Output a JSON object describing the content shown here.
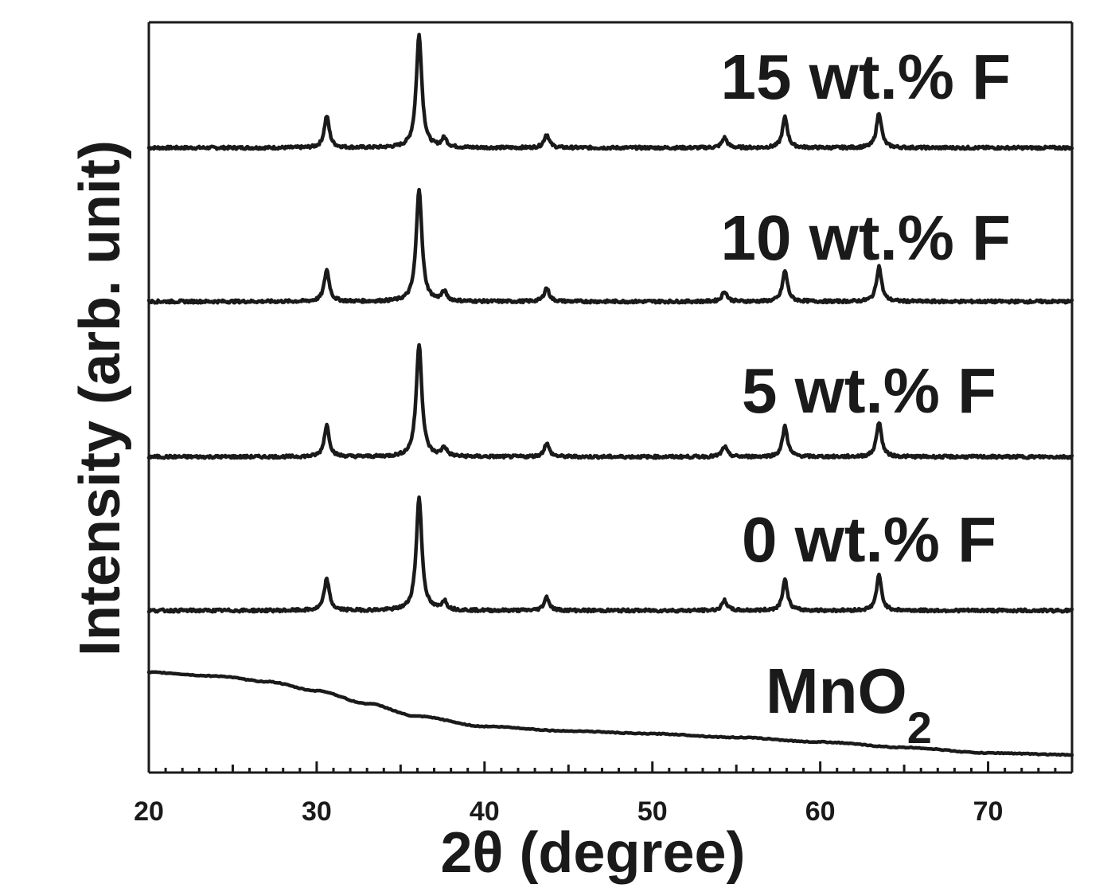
{
  "chart_data": {
    "type": "line",
    "title": "",
    "xlabel": "2θ (degree)",
    "ylabel": "Intensity (arb. unit)",
    "xlim": [
      20,
      75
    ],
    "xticks": [
      20,
      30,
      40,
      50,
      60,
      70
    ],
    "yticks_shown": false,
    "grid": false,
    "peaks": [
      {
        "x": 30.6,
        "height": 0.28
      },
      {
        "x": 36.1,
        "height": 1.0
      },
      {
        "x": 37.6,
        "height": 0.08
      },
      {
        "x": 43.7,
        "height": 0.12
      },
      {
        "x": 54.3,
        "height": 0.09
      },
      {
        "x": 57.9,
        "height": 0.27
      },
      {
        "x": 63.5,
        "height": 0.31
      }
    ],
    "series": [
      {
        "name": "15 wt.% F",
        "type": "crystalline",
        "offset": 4
      },
      {
        "name": "10 wt.% F",
        "type": "crystalline",
        "offset": 3
      },
      {
        "name": "5 wt.% F",
        "type": "crystalline",
        "offset": 2
      },
      {
        "name": "0 wt.% F",
        "type": "crystalline",
        "offset": 1
      },
      {
        "name": "MnO₂",
        "label_main": "MnO",
        "label_sub": "2",
        "type": "amorphous",
        "offset": 0,
        "x": [
          20,
          24,
          27,
          30,
          33,
          36,
          40,
          45,
          50,
          55,
          60,
          65,
          70,
          75
        ],
        "y": [
          0.92,
          0.88,
          0.82,
          0.72,
          0.58,
          0.44,
          0.33,
          0.28,
          0.25,
          0.21,
          0.16,
          0.1,
          0.04,
          0.02
        ]
      }
    ]
  }
}
